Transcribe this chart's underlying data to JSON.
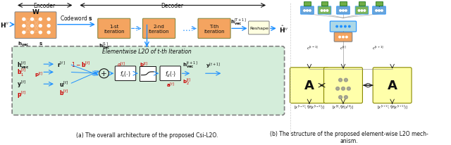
{
  "caption_a": "(a) The overall architecture of the proposed Csi-L2O.",
  "caption_b": "(b) The structure of the proposed element-wise L2O mech-\nanism.",
  "encoder_label": "Encoder",
  "decoder_label": "Decoder",
  "elementwise_label": "Elementwise L2O of t-th Iteration",
  "iteration_labels": [
    "1-st\niteration",
    "2-nd\niteration",
    "T-th\niteration"
  ],
  "reshape_label": "Reshape",
  "bg_color": "#ffffff",
  "box_orange": "#F4A460",
  "box_green_light": "#d4edda",
  "box_yellow": "#ffffaa",
  "box_blue": "#add8e6",
  "arrow_blue": "#1E90FF",
  "arrow_dark": "#333333",
  "text_red": "#cc0000",
  "text_blue": "#1E90FF",
  "text_black": "#111111"
}
